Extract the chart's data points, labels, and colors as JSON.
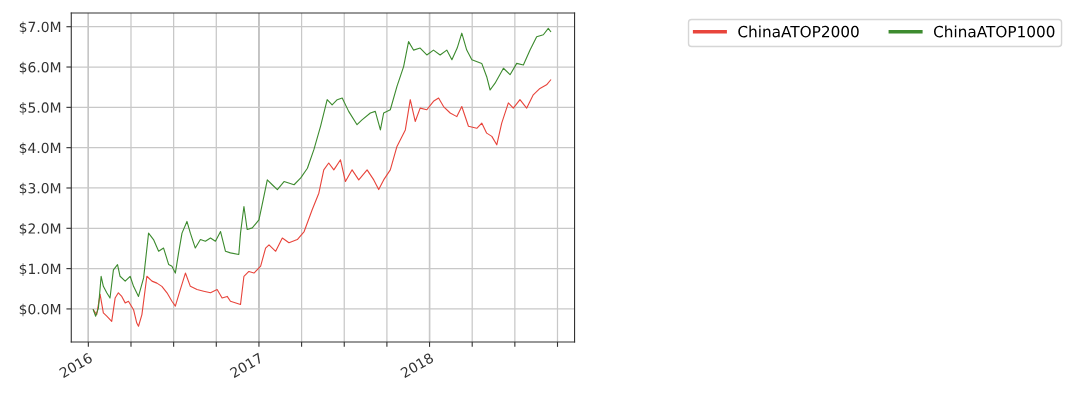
{
  "chart_data": {
    "type": "line",
    "xlim": [
      2015.9,
      2018.85
    ],
    "ylim": [
      -0.82,
      7.34
    ],
    "xticks": [
      2016,
      {
        "value": 2016.25,
        "label": null
      },
      {
        "value": 2016.5,
        "label": null
      },
      {
        "value": 2016.75,
        "label": null
      },
      2017,
      {
        "value": 2017.25,
        "label": null
      },
      {
        "value": 2017.5,
        "label": null
      },
      {
        "value": 2017.75,
        "label": null
      },
      2018,
      {
        "value": 2018.25,
        "label": null
      },
      {
        "value": 2018.5,
        "label": null
      },
      {
        "value": 2018.75,
        "label": null
      }
    ],
    "yticks": [
      {
        "value": 0,
        "label": "$0.0M"
      },
      {
        "value": 1,
        "label": "$1.0M"
      },
      {
        "value": 2,
        "label": "$2.0M"
      },
      {
        "value": 3,
        "label": "$3.0M"
      },
      {
        "value": 4,
        "label": "$4.0M"
      },
      {
        "value": 5,
        "label": "$5.0M"
      },
      {
        "value": 6,
        "label": "$6.0M"
      },
      {
        "value": 7,
        "label": "$7.0M"
      }
    ],
    "grid": true,
    "legend": "top right",
    "line_style": "solid",
    "marker": "none",
    "series": [
      {
        "name": "ChinaATOP2000",
        "color": "#e8453c",
        "x": [
          2016.029,
          2016.049,
          2016.069,
          2016.088,
          2016.108,
          2016.137,
          2016.157,
          2016.176,
          2016.196,
          2016.216,
          2016.235,
          2016.265,
          2016.284,
          2016.294,
          2016.314,
          2016.343,
          2016.373,
          2016.402,
          2016.431,
          2016.461,
          2016.49,
          2016.51,
          2016.539,
          2016.569,
          2016.598,
          2016.637,
          2016.676,
          2016.716,
          2016.755,
          2016.784,
          2016.814,
          2016.833,
          2016.892,
          2016.912,
          2016.941,
          2016.971,
          2017.01,
          2017.039,
          2017.059,
          2017.098,
          2017.137,
          2017.176,
          2017.225,
          2017.265,
          2017.312,
          2017.351,
          2017.38,
          2017.409,
          2017.439,
          2017.478,
          2017.507,
          2017.546,
          2017.585,
          2017.634,
          2017.673,
          2017.702,
          2017.731,
          2017.77,
          2017.809,
          2017.858,
          2017.887,
          2017.916,
          2017.945,
          2017.984,
          2018.023,
          2018.053,
          2018.082,
          2018.121,
          2018.16,
          2018.189,
          2018.228,
          2018.277,
          2018.306,
          2018.335,
          2018.365,
          2018.394,
          2018.423,
          2018.462,
          2018.491,
          2018.53,
          2018.569,
          2018.608,
          2018.647,
          2018.686,
          2018.71
        ],
        "values": [
          -0.02,
          -0.14,
          0.36,
          -0.1,
          -0.18,
          -0.31,
          0.27,
          0.4,
          0.31,
          0.15,
          0.19,
          -0.02,
          -0.35,
          -0.43,
          -0.14,
          0.81,
          0.69,
          0.64,
          0.56,
          0.4,
          0.19,
          0.07,
          0.48,
          0.89,
          0.56,
          0.48,
          0.44,
          0.4,
          0.48,
          0.27,
          0.31,
          0.19,
          0.11,
          0.81,
          0.93,
          0.89,
          1.06,
          1.51,
          1.59,
          1.43,
          1.76,
          1.64,
          1.72,
          1.92,
          2.46,
          2.87,
          3.45,
          3.62,
          3.45,
          3.7,
          3.16,
          3.45,
          3.2,
          3.45,
          3.2,
          2.96,
          3.2,
          3.45,
          4.03,
          4.44,
          5.19,
          4.65,
          4.98,
          4.94,
          5.15,
          5.23,
          5.02,
          4.86,
          4.77,
          5.02,
          4.53,
          4.48,
          4.61,
          4.36,
          4.28,
          4.07,
          4.61,
          5.11,
          4.98,
          5.19,
          4.98,
          5.31,
          5.47,
          5.56,
          5.68
        ]
      },
      {
        "name": "ChinaATOP1000",
        "color": "#3d8b2f",
        "x": [
          2016.029,
          2016.043,
          2016.059,
          2016.075,
          2016.088,
          2016.108,
          2016.127,
          2016.147,
          2016.171,
          2016.186,
          2016.216,
          2016.245,
          2016.265,
          2016.294,
          2016.324,
          2016.353,
          2016.382,
          2016.412,
          2016.441,
          2016.471,
          2016.49,
          2016.51,
          2016.529,
          2016.549,
          2016.578,
          2016.598,
          2016.627,
          2016.657,
          2016.686,
          2016.716,
          2016.745,
          2016.775,
          2016.804,
          2016.833,
          2016.882,
          2016.892,
          2016.912,
          2016.931,
          2016.961,
          2017.0,
          2017.029,
          2017.049,
          2017.078,
          2017.108,
          2017.147,
          2017.206,
          2017.245,
          2017.284,
          2017.322,
          2017.361,
          2017.4,
          2017.429,
          2017.459,
          2017.488,
          2017.526,
          2017.575,
          2017.604,
          2017.653,
          2017.682,
          2017.712,
          2017.731,
          2017.77,
          2017.809,
          2017.848,
          2017.877,
          2017.906,
          2017.945,
          2017.984,
          2018.023,
          2018.062,
          2018.101,
          2018.131,
          2018.162,
          2018.189,
          2018.218,
          2018.248,
          2018.306,
          2018.335,
          2018.355,
          2018.384,
          2018.433,
          2018.472,
          2018.511,
          2018.55,
          2018.589,
          2018.628,
          2018.667,
          2018.696,
          2018.71
        ],
        "values": [
          -0.02,
          -0.18,
          0.02,
          0.81,
          0.56,
          0.4,
          0.27,
          0.97,
          1.1,
          0.81,
          0.69,
          0.81,
          0.56,
          0.31,
          0.77,
          1.88,
          1.72,
          1.43,
          1.51,
          1.1,
          1.06,
          0.89,
          1.39,
          1.88,
          2.17,
          1.88,
          1.51,
          1.72,
          1.68,
          1.76,
          1.68,
          1.92,
          1.43,
          1.39,
          1.35,
          1.88,
          2.54,
          1.97,
          2.01,
          2.21,
          2.79,
          3.2,
          3.08,
          2.96,
          3.16,
          3.08,
          3.25,
          3.49,
          3.95,
          4.53,
          5.19,
          5.06,
          5.19,
          5.23,
          4.9,
          4.57,
          4.69,
          4.86,
          4.9,
          4.44,
          4.86,
          4.94,
          5.52,
          6.01,
          6.63,
          6.42,
          6.47,
          6.3,
          6.42,
          6.3,
          6.42,
          6.18,
          6.47,
          6.84,
          6.42,
          6.18,
          6.09,
          5.76,
          5.43,
          5.6,
          5.97,
          5.81,
          6.09,
          6.05,
          6.42,
          6.75,
          6.8,
          6.96,
          6.88
        ]
      }
    ]
  }
}
